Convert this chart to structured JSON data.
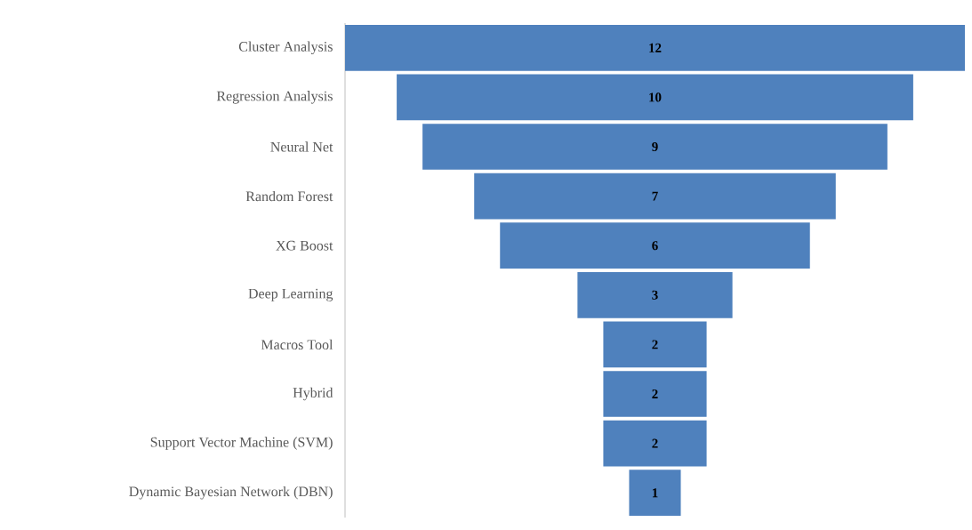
{
  "chart_data": {
    "type": "other",
    "categories": [
      "Cluster Analysis",
      "Regression Analysis",
      "Neural Net",
      "Random Forest",
      "XG Boost",
      "Deep Learning",
      "Macros Tool",
      "Hybrid",
      "Support Vector Machine (SVM)",
      "Dynamic Bayesian Network (DBN)"
    ],
    "values": [
      12,
      10,
      9,
      7,
      6,
      3,
      2,
      2,
      2,
      1
    ],
    "color": "#4f81bd",
    "data_labels": true
  }
}
